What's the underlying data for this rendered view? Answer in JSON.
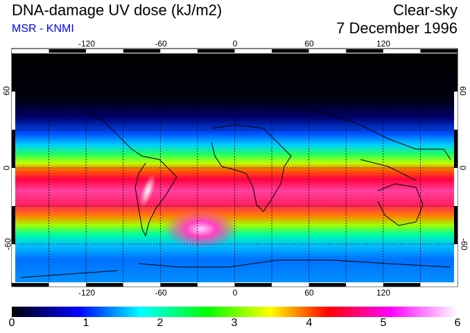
{
  "header": {
    "title": "DNA-damage UV dose (kJ/m2)",
    "source": "MSR - KNMI",
    "condition": "Clear-sky",
    "date": "7 December 1996"
  },
  "map": {
    "lon_ticks": [
      "-120",
      "-60",
      "0",
      "60",
      "120"
    ],
    "lat_ticks": [
      "60",
      "0",
      "-60"
    ]
  },
  "colorbar": {
    "labels": [
      "0",
      "1",
      "2",
      "3",
      "4",
      "5",
      "6"
    ],
    "colors": [
      "#000000",
      "#000080",
      "#0000ff",
      "#00ffff",
      "#00ff00",
      "#ffff00",
      "#ff0000",
      "#ff00ff",
      "#ffffff"
    ]
  }
}
